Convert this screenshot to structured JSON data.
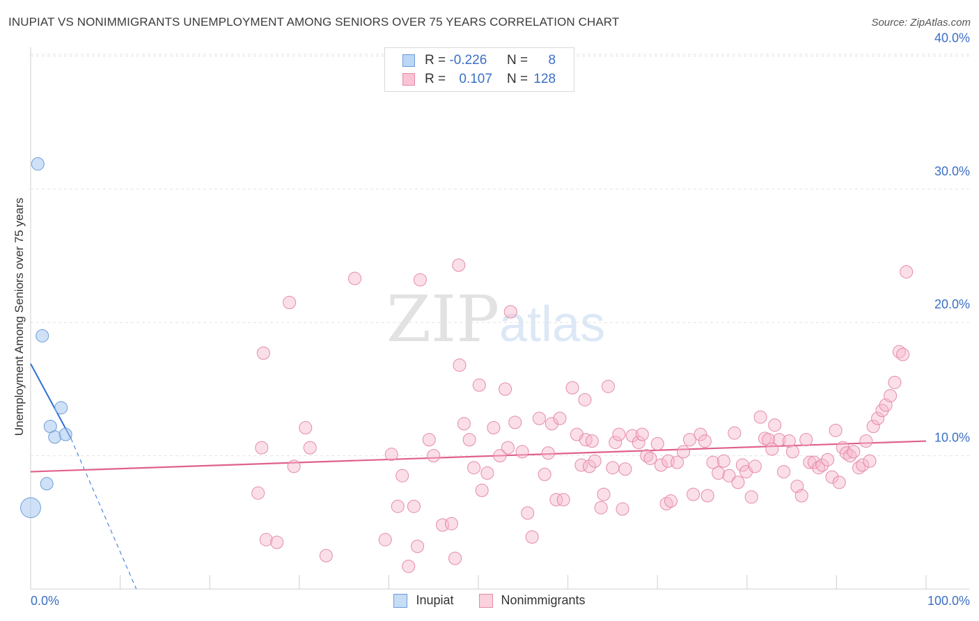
{
  "title": "INUPIAT VS NONIMMIGRANTS UNEMPLOYMENT AMONG SENIORS OVER 75 YEARS CORRELATION CHART",
  "source": "Source: ZipAtlas.com",
  "watermark": {
    "zip": "ZIP",
    "atlas": "atlas"
  },
  "legend": {
    "rows": [
      {
        "r_label": "R =",
        "r_value": "-0.226",
        "n_label": "N =",
        "n_value": "8",
        "color": "#a8c8f0",
        "border": "#6b9bd8"
      },
      {
        "r_label": "R =",
        "r_value": "0.107",
        "n_label": "N =",
        "n_value": "128",
        "color": "#f7b8cb",
        "border": "#e48aa7"
      }
    ]
  },
  "bottom_legend": [
    {
      "label": "Inupiat",
      "color": "#c7dcf5",
      "border": "#6b9bd8"
    },
    {
      "label": "Nonimmigrants",
      "color": "#fbd1dd",
      "border": "#e48aa7"
    }
  ],
  "chart_data": {
    "type": "scatter",
    "title": "INUPIAT VS NONIMMIGRANTS UNEMPLOYMENT AMONG SENIORS OVER 75 YEARS CORRELATION CHART",
    "xlabel": "",
    "ylabel": "Unemployment Among Seniors over 75 years",
    "xlim": [
      0,
      100
    ],
    "ylim": [
      0,
      42
    ],
    "x_tick_labels": [
      "0.0%",
      "100.0%"
    ],
    "y_ticks": [
      10,
      20,
      30,
      40
    ],
    "y_tick_labels": [
      "10.0%",
      "20.0%",
      "30.0%",
      "40.0%"
    ],
    "grid": true,
    "series": [
      {
        "name": "Inupiat",
        "color": "#a8c8f0",
        "border": "#6b9bd8",
        "points": [
          [
            0,
            6.1,
            1.6
          ],
          [
            0.8,
            31.9,
            1
          ],
          [
            1.3,
            19.0,
            1
          ],
          [
            1.8,
            7.9,
            1
          ],
          [
            2.2,
            12.2,
            1
          ],
          [
            2.7,
            11.4,
            1
          ],
          [
            3.4,
            13.6,
            1
          ],
          [
            3.9,
            11.6,
            1
          ]
        ],
        "trend": {
          "x0": 0,
          "y0": 16.9,
          "x1": 4.5,
          "y1": 11.3,
          "dash_x1": 11.8,
          "dash_y1": 0,
          "color": "#2f6fd6"
        }
      },
      {
        "name": "Nonimmigrants",
        "color": "#f7b8cb",
        "border": "#e48aa7",
        "points": [
          [
            25.4,
            7.2
          ],
          [
            25.8,
            10.6
          ],
          [
            26.3,
            3.7
          ],
          [
            26.0,
            17.7
          ],
          [
            27.5,
            3.5
          ],
          [
            28.9,
            21.5
          ],
          [
            29.4,
            9.2
          ],
          [
            30.7,
            12.1
          ],
          [
            31.2,
            10.6
          ],
          [
            33.0,
            2.5
          ],
          [
            36.2,
            23.3
          ],
          [
            39.6,
            3.7
          ],
          [
            40.3,
            10.1
          ],
          [
            41.0,
            6.2
          ],
          [
            41.5,
            8.5
          ],
          [
            42.2,
            1.7
          ],
          [
            42.8,
            6.2
          ],
          [
            43.2,
            3.2
          ],
          [
            43.5,
            23.2
          ],
          [
            44.5,
            11.2
          ],
          [
            45.0,
            10.0
          ],
          [
            46.0,
            4.8
          ],
          [
            47.0,
            4.9
          ],
          [
            47.4,
            2.3
          ],
          [
            47.8,
            24.3
          ],
          [
            47.9,
            16.8
          ],
          [
            48.4,
            12.4
          ],
          [
            49.0,
            11.2
          ],
          [
            49.5,
            9.1
          ],
          [
            50.1,
            15.3
          ],
          [
            50.4,
            7.4
          ],
          [
            51.0,
            8.7
          ],
          [
            51.7,
            12.1
          ],
          [
            52.4,
            10.0
          ],
          [
            53.0,
            15.0
          ],
          [
            53.3,
            10.6
          ],
          [
            53.6,
            20.8
          ],
          [
            54.1,
            12.5
          ],
          [
            54.9,
            10.3
          ],
          [
            55.5,
            5.7
          ],
          [
            56.0,
            3.9
          ],
          [
            56.8,
            12.8
          ],
          [
            57.4,
            8.6
          ],
          [
            57.8,
            10.2
          ],
          [
            58.2,
            12.4
          ],
          [
            58.7,
            6.7
          ],
          [
            59.1,
            12.8
          ],
          [
            59.5,
            6.7
          ],
          [
            60.5,
            15.1
          ],
          [
            61.0,
            11.6
          ],
          [
            61.5,
            9.3
          ],
          [
            61.9,
            14.2
          ],
          [
            62.0,
            11.2
          ],
          [
            62.4,
            9.2
          ],
          [
            62.7,
            11.1
          ],
          [
            63.0,
            9.6
          ],
          [
            63.7,
            6.1
          ],
          [
            64.0,
            7.1
          ],
          [
            64.5,
            15.2
          ],
          [
            65.0,
            9.1
          ],
          [
            65.3,
            11.0
          ],
          [
            65.7,
            11.6
          ],
          [
            66.1,
            6.0
          ],
          [
            66.4,
            9.0
          ],
          [
            67.2,
            11.5
          ],
          [
            67.9,
            11.0
          ],
          [
            68.3,
            11.6
          ],
          [
            68.8,
            10.0
          ],
          [
            69.2,
            9.8
          ],
          [
            70.0,
            10.9
          ],
          [
            70.4,
            9.3
          ],
          [
            71.0,
            6.4
          ],
          [
            71.2,
            9.6
          ],
          [
            71.5,
            6.6
          ],
          [
            72.2,
            9.5
          ],
          [
            72.9,
            10.3
          ],
          [
            73.6,
            11.2
          ],
          [
            74.0,
            7.1
          ],
          [
            74.8,
            11.6
          ],
          [
            75.3,
            11.1
          ],
          [
            75.6,
            7.0
          ],
          [
            76.2,
            9.5
          ],
          [
            76.8,
            8.7
          ],
          [
            77.4,
            9.6
          ],
          [
            78.0,
            8.5
          ],
          [
            78.6,
            11.7
          ],
          [
            79.0,
            8.0
          ],
          [
            79.5,
            9.3
          ],
          [
            79.9,
            8.8
          ],
          [
            80.5,
            6.9
          ],
          [
            80.9,
            9.2
          ],
          [
            81.5,
            12.9
          ],
          [
            82.0,
            11.3
          ],
          [
            82.4,
            11.2
          ],
          [
            82.8,
            10.5
          ],
          [
            83.1,
            12.3
          ],
          [
            83.6,
            11.2
          ],
          [
            84.1,
            8.8
          ],
          [
            84.7,
            11.1
          ],
          [
            85.1,
            10.3
          ],
          [
            85.6,
            7.7
          ],
          [
            86.1,
            7.0
          ],
          [
            86.6,
            11.2
          ],
          [
            87.0,
            9.5
          ],
          [
            87.5,
            9.5
          ],
          [
            88.0,
            9.1
          ],
          [
            88.4,
            9.3
          ],
          [
            89.0,
            9.7
          ],
          [
            89.5,
            8.4
          ],
          [
            89.9,
            11.9
          ],
          [
            90.3,
            8.0
          ],
          [
            90.7,
            10.6
          ],
          [
            91.1,
            10.2
          ],
          [
            91.5,
            10.0
          ],
          [
            91.9,
            10.3
          ],
          [
            92.5,
            9.1
          ],
          [
            92.9,
            9.3
          ],
          [
            93.3,
            11.1
          ],
          [
            93.7,
            9.6
          ],
          [
            94.1,
            12.2
          ],
          [
            94.6,
            12.8
          ],
          [
            95.1,
            13.4
          ],
          [
            95.5,
            13.8
          ],
          [
            96.0,
            14.5
          ],
          [
            96.5,
            15.5
          ],
          [
            97.0,
            17.8
          ],
          [
            97.4,
            17.6
          ],
          [
            97.8,
            23.8
          ]
        ],
        "trend": {
          "x0": 0,
          "y0": 8.8,
          "x1": 100,
          "y1": 11.1,
          "color": "#e0608b"
        }
      }
    ]
  }
}
